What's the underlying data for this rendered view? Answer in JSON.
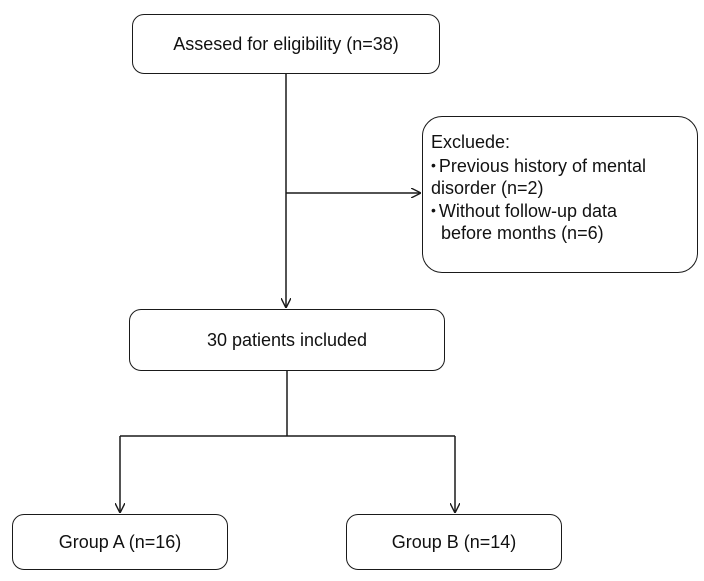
{
  "nodes": {
    "assessed": "Assesed for eligibility (n=38)",
    "excluded": {
      "title": "Excluede:",
      "items": [
        {
          "line1": "Previous history of mental",
          "line2": "disorder (n=2)"
        },
        {
          "line1": "Without follow-up data",
          "line2": "before months (n=6)"
        }
      ]
    },
    "included": "30 patients included",
    "group_a": "Group A (n=16)",
    "group_b": "Group B (n=14)"
  },
  "colors": {
    "stroke": "#1a1a1a",
    "background": "#ffffff"
  }
}
